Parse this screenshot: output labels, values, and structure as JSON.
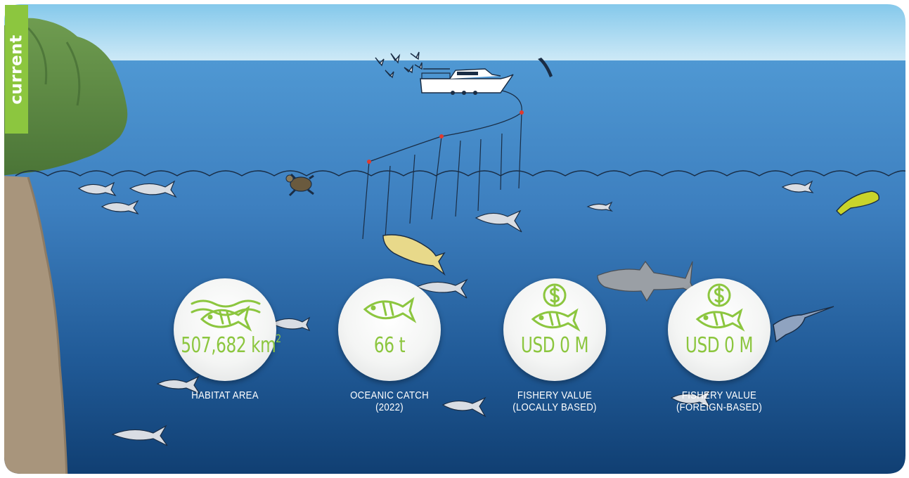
{
  "tag": {
    "label": "current"
  },
  "stats": [
    {
      "value_main": "507,682 km",
      "value_sup": "2",
      "caption_line1": "HABITAT AREA",
      "caption_line2": "",
      "icon": "fish-waves-icon"
    },
    {
      "value_main": "66 t",
      "value_sup": "",
      "caption_line1": "OCEANIC CATCH",
      "caption_line2": "(2022)",
      "icon": "fish-icon"
    },
    {
      "value_main": "USD 0 M",
      "value_sup": "",
      "caption_line1": "FISHERY VALUE",
      "caption_line2": "(LOCALLY BASED)",
      "icon": "dollar-fish-icon"
    },
    {
      "value_main": "USD 0 M",
      "value_sup": "",
      "caption_line1": "FISHERY VALUE",
      "caption_line2": "(FOREIGN-BASED)",
      "icon": "dollar-fish-icon"
    }
  ],
  "colors": {
    "sky_top": "#7fc6ea",
    "sky_bottom": "#cfeaf7",
    "ocean_top": "#4e97d2",
    "ocean_bottom": "#0e3f72",
    "accent_green": "#8cc63f",
    "cliff": "#a8957c",
    "hill": "#5f8a45"
  }
}
